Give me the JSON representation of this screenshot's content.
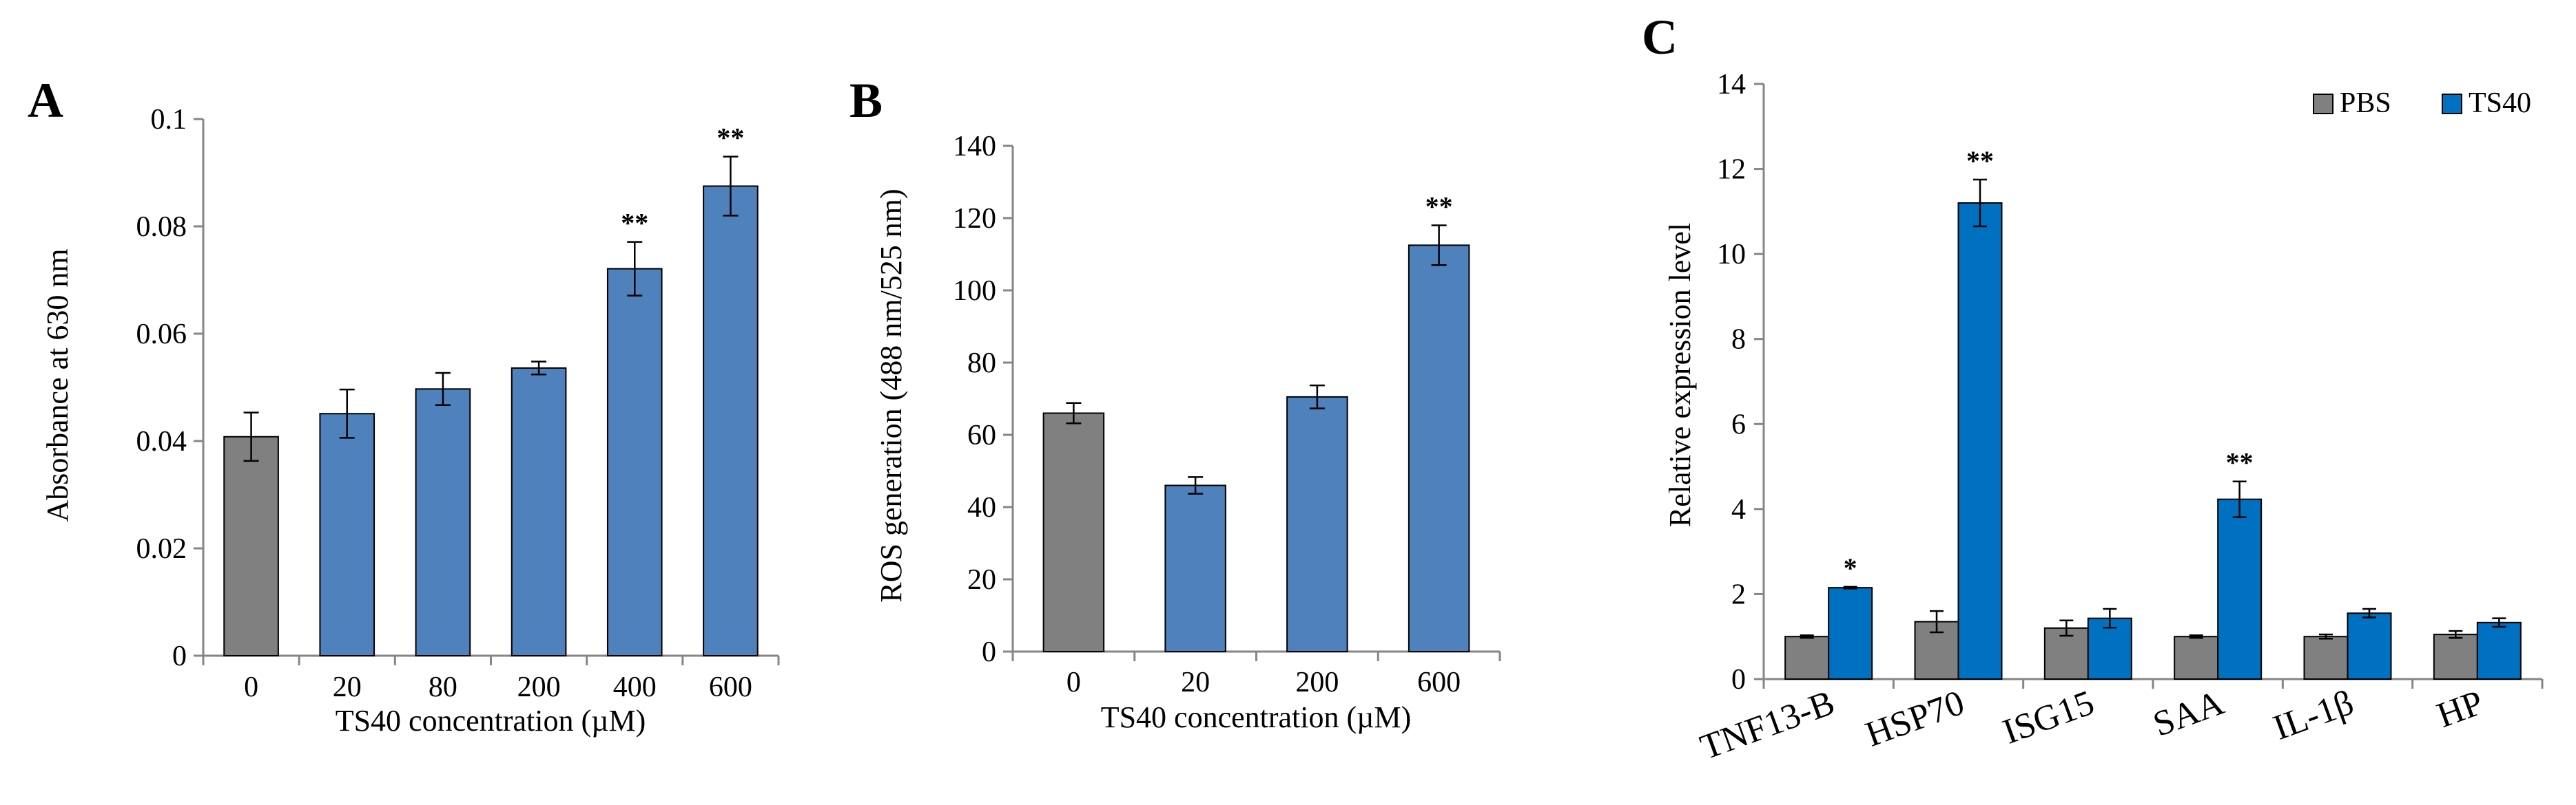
{
  "chart_data": [
    {
      "panel": "A",
      "type": "bar",
      "xlabel": "TS40 concentration (µM)",
      "ylabel": "Absorbance at 630 nm",
      "ylim": [
        0,
        0.1
      ],
      "yticks": [
        "0",
        "0.02",
        "0.04",
        "0.06",
        "0.08",
        "0.1"
      ],
      "categories": [
        "0",
        "20",
        "80",
        "200",
        "400",
        "600"
      ],
      "values": [
        0.0408,
        0.0451,
        0.0497,
        0.0536,
        0.0721,
        0.0875
      ],
      "errors": [
        0.0045,
        0.0045,
        0.003,
        0.0012,
        0.005,
        0.0055
      ],
      "significance": [
        "",
        "",
        "",
        "",
        "**",
        "**"
      ],
      "colors": [
        "#808080",
        "#4f81bd",
        "#4f81bd",
        "#4f81bd",
        "#4f81bd",
        "#4f81bd"
      ]
    },
    {
      "panel": "B",
      "type": "bar",
      "xlabel": "TS40 concentration (µM)",
      "ylabel": "ROS generation (488 nm/525 nm)",
      "ylim": [
        0,
        140
      ],
      "yticks": [
        "0",
        "20",
        "40",
        "60",
        "80",
        "100",
        "120",
        "140"
      ],
      "categories": [
        "0",
        "20",
        "200",
        "600"
      ],
      "values": [
        66,
        46,
        70.5,
        112.5
      ],
      "errors": [
        2.8,
        2.3,
        3.2,
        5.5
      ],
      "significance": [
        "",
        "",
        "",
        "**"
      ],
      "colors": [
        "#808080",
        "#4f81bd",
        "#4f81bd",
        "#4f81bd"
      ]
    },
    {
      "panel": "C",
      "type": "bar",
      "xlabel": "",
      "ylabel": "Relative expression level",
      "ylim": [
        0,
        14
      ],
      "yticks": [
        "0",
        "2",
        "4",
        "6",
        "8",
        "10",
        "12",
        "14"
      ],
      "categories": [
        "TNF13-B",
        "HSP70",
        "ISG15",
        "SAA",
        "IL-1β",
        "HP"
      ],
      "legend": {
        "placement": "top-right"
      },
      "series": [
        {
          "name": "PBS",
          "color": "#808080",
          "values": [
            1.0,
            1.35,
            1.2,
            1.0,
            1.0,
            1.05
          ],
          "errors": [
            0.03,
            0.25,
            0.18,
            0.03,
            0.05,
            0.08
          ],
          "significance": [
            "",
            "",
            "",
            "",
            "",
            ""
          ]
        },
        {
          "name": "TS40",
          "color": "#0070c0",
          "values": [
            2.15,
            11.2,
            1.43,
            4.23,
            1.55,
            1.33
          ],
          "errors": [
            0.02,
            0.55,
            0.22,
            0.42,
            0.1,
            0.1
          ],
          "significance": [
            "*",
            "**",
            "",
            "**",
            "",
            ""
          ]
        }
      ]
    }
  ]
}
